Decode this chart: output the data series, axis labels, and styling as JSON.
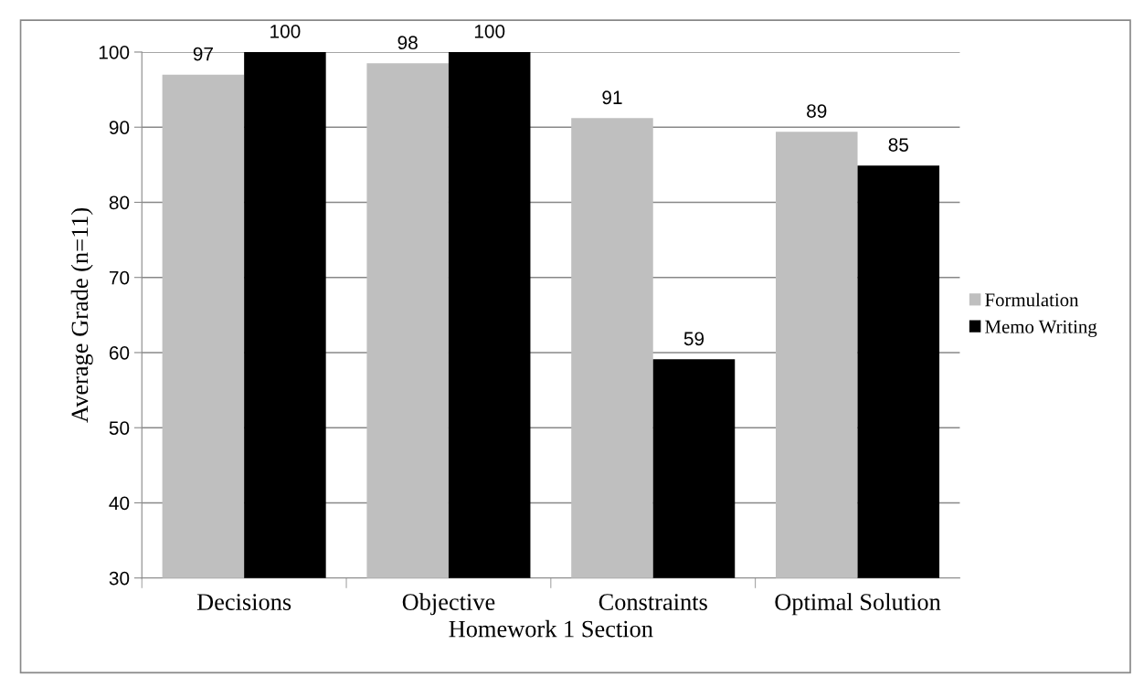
{
  "chart_data": {
    "type": "bar",
    "xlabel": "Homework 1 Section",
    "ylabel": "Average Grade (n=11)",
    "categories": [
      "Decisions",
      "Objective",
      "Constraints",
      "Optimal Solution"
    ],
    "series": [
      {
        "name": "Formulation",
        "color": "#bfbfbf",
        "values": [
          97.0,
          98.5,
          91.2,
          89.4
        ],
        "value_labels": [
          "97",
          "98",
          "91",
          "89"
        ]
      },
      {
        "name": "Memo Writing",
        "color": "#000000",
        "values": [
          100,
          100,
          59.1,
          84.9
        ],
        "value_labels": [
          "100",
          "100",
          "59",
          "85"
        ]
      }
    ],
    "ylim": [
      30,
      100
    ],
    "yticks": [
      30,
      40,
      50,
      60,
      70,
      80,
      90,
      100
    ],
    "grid": "y",
    "legend": "right"
  }
}
